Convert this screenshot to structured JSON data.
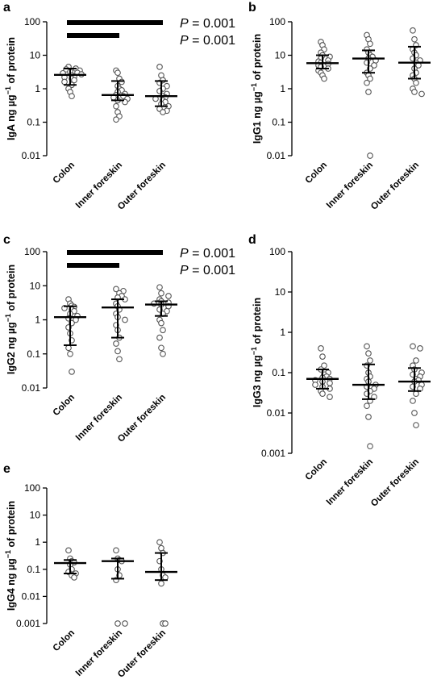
{
  "chart_data": [
    {
      "panel": "a",
      "type": "scatter",
      "ylabel_pre": "IgA ng µg",
      "ylabel_sup": "−1",
      "ylabel_post": " of protein",
      "scale": "log",
      "ylim": [
        0.01,
        100
      ],
      "yticks": [
        "100",
        "10",
        "1",
        "0.1",
        "0.01"
      ],
      "categories": [
        "Colon",
        "Inner foreskin",
        "Outer foreskin"
      ],
      "median": [
        2.6,
        0.65,
        0.6
      ],
      "iqr": [
        [
          1.3,
          4.0
        ],
        [
          0.45,
          1.7
        ],
        [
          0.3,
          1.7
        ]
      ],
      "points": [
        [
          4.5,
          4.0,
          3.8,
          3.5,
          3.2,
          3.0,
          2.9,
          2.7,
          2.5,
          2.3,
          2.2,
          2.0,
          1.8,
          1.6,
          1.3,
          1.0,
          0.8,
          0.6
        ],
        [
          3.5,
          3.0,
          2.0,
          1.6,
          1.2,
          1.0,
          0.9,
          0.8,
          0.7,
          0.65,
          0.6,
          0.55,
          0.5,
          0.45,
          0.4,
          0.3,
          0.2,
          0.15,
          0.12
        ],
        [
          4.5,
          2.5,
          1.8,
          1.5,
          1.2,
          1.0,
          0.85,
          0.7,
          0.6,
          0.55,
          0.5,
          0.45,
          0.4,
          0.35,
          0.3,
          0.25,
          0.22,
          0.2
        ]
      ],
      "comparisons": [
        {
          "from": 0,
          "to": 2,
          "p_label": "P",
          "p_value": "= 0.001"
        },
        {
          "from": 0,
          "to": 1,
          "p_label": "P",
          "p_value": "= 0.001"
        }
      ]
    },
    {
      "panel": "b",
      "type": "scatter",
      "ylabel_pre": "IgG1 ng µg",
      "ylabel_sup": "−1",
      "ylabel_post": " of protein",
      "scale": "log",
      "ylim": [
        0.01,
        100
      ],
      "yticks": [
        "100",
        "10",
        "1",
        "0.1",
        "0.01"
      ],
      "categories": [
        "Colon",
        "Inner foreskin",
        "Outer foreskin"
      ],
      "median": [
        5.8,
        8.0,
        6.0
      ],
      "iqr": [
        [
          4.0,
          10.0
        ],
        [
          3.0,
          14.0
        ],
        [
          2.0,
          18.0
        ]
      ],
      "points": [
        [
          25,
          20,
          15,
          12,
          10,
          9,
          8,
          7,
          6.5,
          6,
          5.5,
          5,
          4.5,
          4,
          3.5,
          3,
          2.5,
          2
        ],
        [
          40,
          30,
          22,
          15,
          12,
          10,
          9,
          8,
          7,
          6,
          5,
          4,
          3,
          2.5,
          2,
          1.5,
          0.8,
          0.01
        ],
        [
          55,
          30,
          20,
          15,
          12,
          10,
          8,
          7,
          6,
          5,
          4,
          3,
          2.5,
          2,
          1.5,
          1,
          0.8,
          0.7
        ]
      ],
      "comparisons": []
    },
    {
      "panel": "c",
      "type": "scatter",
      "ylabel_pre": "IgG2 ng µg",
      "ylabel_sup": "−1",
      "ylabel_post": " of protein",
      "scale": "log",
      "ylim": [
        0.01,
        100
      ],
      "yticks": [
        "100",
        "10",
        "1",
        "0.1",
        "0.01"
      ],
      "categories": [
        "Colon",
        "Inner foreskin",
        "Outer foreskin"
      ],
      "median": [
        1.2,
        2.3,
        2.8
      ],
      "iqr": [
        [
          0.18,
          2.5
        ],
        [
          0.3,
          4.0
        ],
        [
          1.3,
          3.5
        ]
      ],
      "points": [
        [
          4.0,
          3.0,
          2.6,
          2.4,
          2.2,
          2.0,
          1.8,
          1.5,
          1.3,
          1.1,
          1.0,
          0.8,
          0.6,
          0.4,
          0.25,
          0.15,
          0.1,
          0.03
        ],
        [
          8.0,
          7.0,
          6.0,
          5.0,
          4.5,
          4.0,
          3.0,
          2.5,
          2.0,
          1.5,
          1.2,
          1.0,
          0.7,
          0.5,
          0.3,
          0.2,
          0.12,
          0.07
        ],
        [
          9.0,
          6.0,
          5.0,
          4.0,
          3.5,
          3.2,
          3.0,
          2.8,
          2.5,
          2.0,
          1.8,
          1.5,
          1.0,
          0.8,
          0.5,
          0.3,
          0.15,
          0.1
        ]
      ],
      "comparisons": [
        {
          "from": 0,
          "to": 2,
          "p_label": "P",
          "p_value": "= 0.001"
        },
        {
          "from": 0,
          "to": 1,
          "p_label": "P",
          "p_value": "= 0.001"
        }
      ]
    },
    {
      "panel": "d",
      "type": "scatter",
      "ylabel_pre": "IgG3 ng µg",
      "ylabel_sup": "−1",
      "ylabel_post": " of protein",
      "scale": "log",
      "ylim": [
        0.001,
        100
      ],
      "yticks": [
        "100",
        "10",
        "1",
        "0.1",
        "0.01",
        "0.001"
      ],
      "categories": [
        "Colon",
        "Inner foreskin",
        "Outer foreskin"
      ],
      "median": [
        0.07,
        0.05,
        0.06
      ],
      "iqr": [
        [
          0.04,
          0.12
        ],
        [
          0.022,
          0.16
        ],
        [
          0.035,
          0.13
        ]
      ],
      "points": [
        [
          0.4,
          0.25,
          0.15,
          0.12,
          0.1,
          0.09,
          0.08,
          0.075,
          0.07,
          0.065,
          0.06,
          0.055,
          0.05,
          0.045,
          0.04,
          0.035,
          0.03,
          0.025
        ],
        [
          0.45,
          0.3,
          0.2,
          0.15,
          0.1,
          0.08,
          0.07,
          0.06,
          0.05,
          0.045,
          0.04,
          0.035,
          0.03,
          0.025,
          0.02,
          0.015,
          0.008,
          0.0015
        ],
        [
          0.45,
          0.4,
          0.2,
          0.15,
          0.12,
          0.1,
          0.09,
          0.08,
          0.07,
          0.065,
          0.06,
          0.05,
          0.045,
          0.04,
          0.03,
          0.02,
          0.01,
          0.005
        ]
      ],
      "comparisons": []
    },
    {
      "panel": "e",
      "type": "scatter",
      "ylabel_pre": "IgG4 ng µg",
      "ylabel_sup": "−1",
      "ylabel_post": " of protein",
      "scale": "log",
      "ylim": [
        0.001,
        100
      ],
      "yticks": [
        "100",
        "10",
        "1",
        "0.1",
        "0.01",
        "0.001"
      ],
      "categories": [
        "Colon",
        "Inner foreskin",
        "Outer foreskin"
      ],
      "median": [
        0.17,
        0.2,
        0.08
      ],
      "iqr": [
        [
          0.07,
          0.22
        ],
        [
          0.045,
          0.25
        ],
        [
          0.04,
          0.4
        ]
      ],
      "points": [
        [
          0.5,
          0.25,
          0.2,
          0.18,
          0.15,
          0.1,
          0.08,
          0.07,
          0.06,
          0.05
        ],
        [
          0.5,
          0.25,
          0.22,
          0.2,
          0.1,
          0.06,
          0.04,
          0.001,
          0.001
        ],
        [
          1.0,
          0.6,
          0.4,
          0.2,
          0.1,
          0.06,
          0.05,
          0.03,
          0.001,
          0.001
        ]
      ],
      "comparisons": []
    }
  ]
}
